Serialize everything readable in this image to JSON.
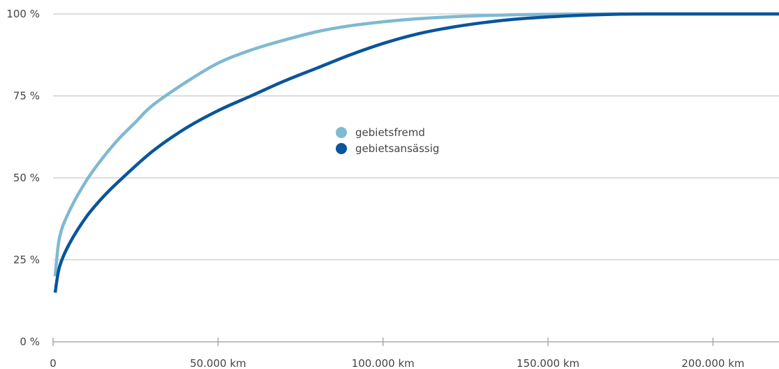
{
  "chart_data": {
    "type": "line",
    "title": "",
    "xlabel": "",
    "ylabel": "",
    "xlim": [
      0,
      220000
    ],
    "ylim": [
      0,
      100
    ],
    "x_ticks": [
      0,
      50000,
      100000,
      150000,
      200000
    ],
    "x_tick_labels": [
      "0",
      "50.000 km",
      "100.000 km",
      "150.000 km",
      "200.000 km"
    ],
    "y_ticks": [
      0,
      25,
      50,
      75,
      100
    ],
    "y_tick_labels": [
      "0 %",
      "25 %",
      "50 %",
      "75 %",
      "100 %"
    ],
    "grid": "horizontal",
    "legend_position": "center",
    "series": [
      {
        "name": "gebietsfremd",
        "color": "#7fb9d2",
        "x": [
          0,
          2000,
          5000,
          10000,
          15000,
          20000,
          25000,
          30000,
          40000,
          50000,
          60000,
          70000,
          80000,
          90000,
          100000,
          110000,
          120000,
          130000,
          140000,
          150000,
          160000,
          180000,
          200000,
          220000
        ],
        "y": [
          20,
          32,
          40,
          49,
          56,
          62,
          67,
          72,
          79,
          85,
          89,
          92,
          94.6,
          96.4,
          97.6,
          98.5,
          99.1,
          99.5,
          99.75,
          99.9,
          100,
          100,
          100,
          100
        ]
      },
      {
        "name": "gebietsansässig",
        "color": "#0a559b",
        "x": [
          0,
          2000,
          5000,
          10000,
          15000,
          20000,
          30000,
          40000,
          50000,
          60000,
          70000,
          80000,
          90000,
          100000,
          110000,
          120000,
          130000,
          140000,
          150000,
          160000,
          170000,
          180000,
          200000,
          220000
        ],
        "y": [
          15,
          23,
          30,
          38,
          44,
          49,
          58,
          65,
          70.5,
          75,
          79.5,
          83.5,
          87.5,
          91,
          93.8,
          95.8,
          97.3,
          98.4,
          99.1,
          99.6,
          99.9,
          100,
          100,
          100
        ]
      }
    ]
  }
}
